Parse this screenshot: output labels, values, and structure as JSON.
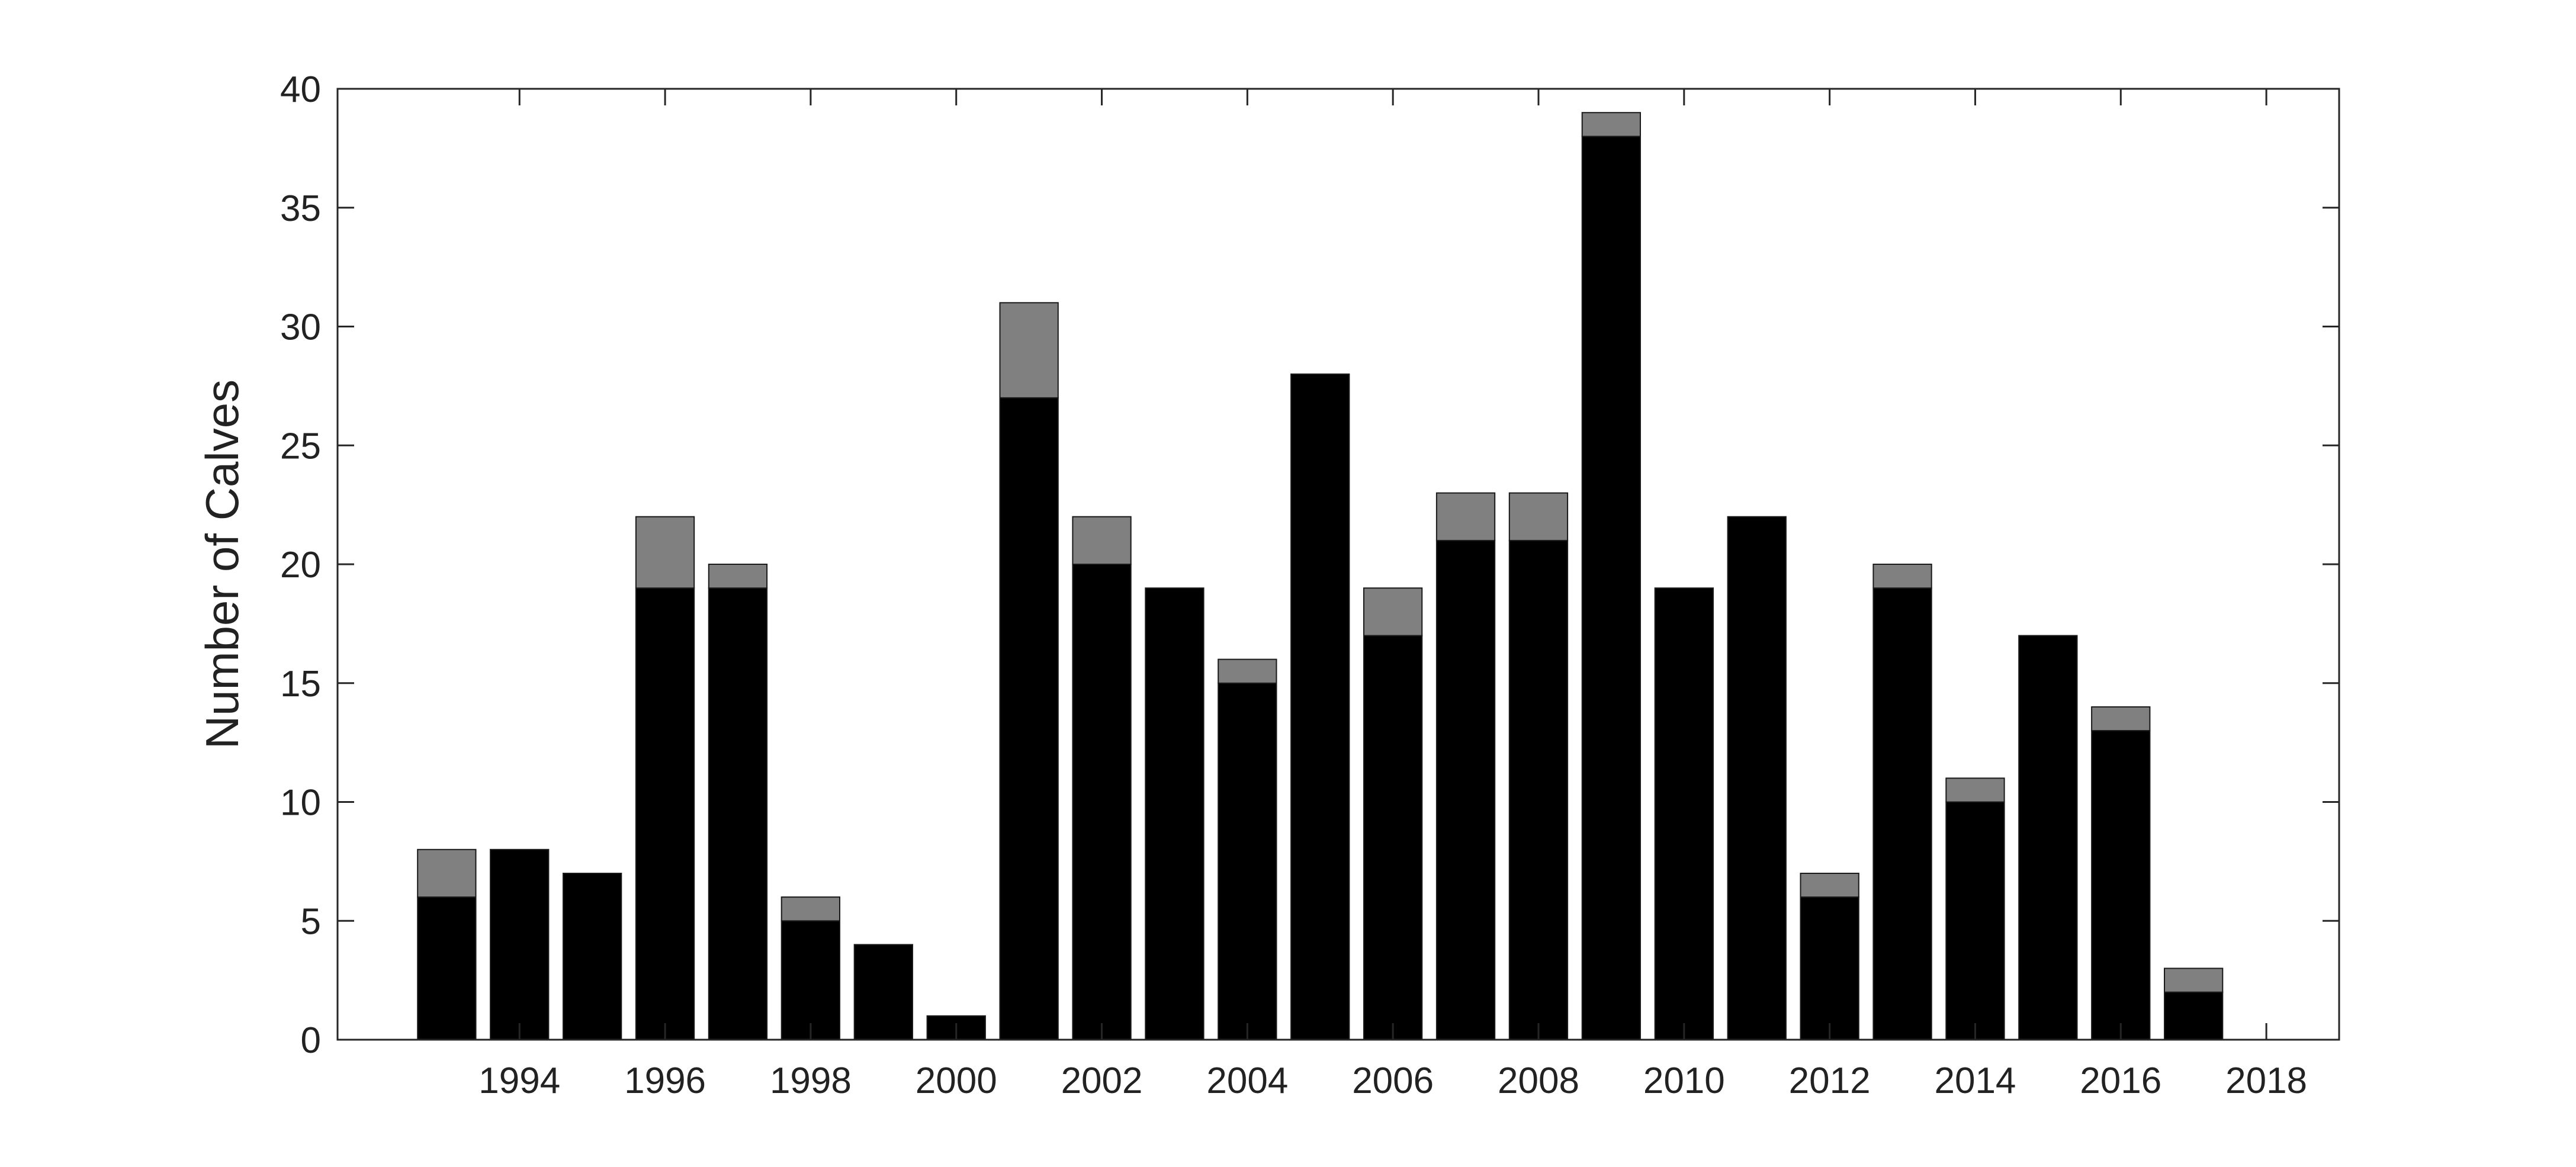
{
  "chart_data": {
    "type": "bar",
    "stacked": true,
    "title": "",
    "xlabel": "",
    "ylabel": "Number of Calves",
    "x": [
      1993,
      1994,
      1995,
      1996,
      1997,
      1998,
      1999,
      2000,
      2001,
      2002,
      2003,
      2004,
      2005,
      2006,
      2007,
      2008,
      2009,
      2010,
      2011,
      2012,
      2013,
      2014,
      2015,
      2016,
      2017
    ],
    "xlim": [
      1991.5,
      2019
    ],
    "ylim": [
      0,
      40
    ],
    "x_ticks": [
      "1994",
      "1996",
      "1998",
      "2000",
      "2002",
      "2004",
      "2006",
      "2008",
      "2010",
      "2012",
      "2014",
      "2016",
      "2018"
    ],
    "y_ticks": [
      "0",
      "5",
      "10",
      "15",
      "20",
      "25",
      "30",
      "35",
      "40"
    ],
    "series": [
      {
        "values": [
          6,
          8,
          7,
          19,
          19,
          5,
          4,
          1,
          27,
          20,
          19,
          15,
          28,
          17,
          21,
          21,
          38,
          19,
          22,
          6,
          19,
          10,
          17,
          13,
          2
        ]
      },
      {
        "values": [
          2,
          0,
          0,
          3,
          1,
          1,
          0,
          0,
          4,
          2,
          0,
          1,
          0,
          2,
          2,
          2,
          1,
          0,
          0,
          1,
          1,
          1,
          0,
          1,
          1
        ]
      }
    ],
    "colors": [
      "#000000",
      "#808080"
    ],
    "grid": false,
    "legend": "none"
  }
}
